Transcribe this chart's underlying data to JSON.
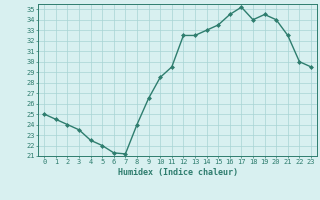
{
  "x": [
    0,
    1,
    2,
    3,
    4,
    5,
    6,
    7,
    8,
    9,
    10,
    11,
    12,
    13,
    14,
    15,
    16,
    17,
    18,
    19,
    20,
    21,
    22,
    23
  ],
  "y": [
    25.0,
    24.5,
    24.0,
    23.5,
    22.5,
    22.0,
    21.3,
    21.2,
    24.0,
    26.5,
    28.5,
    29.5,
    32.5,
    32.5,
    33.0,
    33.5,
    34.5,
    35.2,
    34.0,
    34.5,
    34.0,
    32.5,
    30.0,
    29.5
  ],
  "line_color": "#2e7d6e",
  "marker": "D",
  "marker_size": 2.0,
  "bg_color": "#d8f0f0",
  "grid_color": "#a8d4d4",
  "xlabel": "Humidex (Indice chaleur)",
  "ylim": [
    21,
    35.5
  ],
  "xlim": [
    -0.5,
    23.5
  ],
  "yticks": [
    21,
    22,
    23,
    24,
    25,
    26,
    27,
    28,
    29,
    30,
    31,
    32,
    33,
    34,
    35
  ],
  "xticks": [
    0,
    1,
    2,
    3,
    4,
    5,
    6,
    7,
    8,
    9,
    10,
    11,
    12,
    13,
    14,
    15,
    16,
    17,
    18,
    19,
    20,
    21,
    22,
    23
  ],
  "tick_color": "#2e7d6e",
  "label_fontsize": 6.0,
  "tick_fontsize": 5.0,
  "line_width": 1.0,
  "spine_color": "#2e7d6e"
}
